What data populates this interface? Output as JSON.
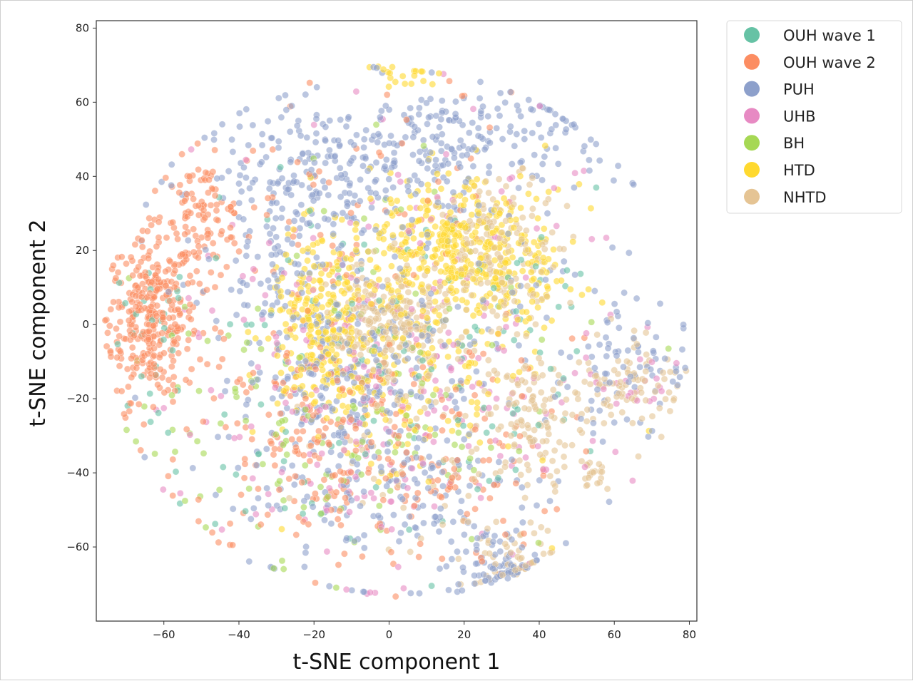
{
  "chart_data": {
    "type": "scatter",
    "title": "",
    "xlabel": "t-SNE component 1",
    "ylabel": "t-SNE component 2",
    "xlim": [
      -78,
      82
    ],
    "ylim": [
      -80,
      82
    ],
    "xticks": [
      -60,
      -40,
      -20,
      0,
      20,
      40,
      60,
      80
    ],
    "yticks": [
      -60,
      -40,
      -20,
      0,
      20,
      40,
      60,
      80
    ],
    "grid": false,
    "legend_position": "outside-top-right",
    "point_alpha": 0.6,
    "series": [
      {
        "name": "OUH wave 1",
        "color": "#66c2a5",
        "clusters": [
          {
            "cx": -62,
            "cy": 0,
            "sx": 5,
            "sy": 10,
            "n": 25
          },
          {
            "cx": -10,
            "cy": -20,
            "sx": 30,
            "sy": 25,
            "n": 90
          },
          {
            "cx": 25,
            "cy": 0,
            "sx": 20,
            "sy": 25,
            "n": 40
          }
        ]
      },
      {
        "name": "OUH wave 2",
        "color": "#fc8d62",
        "clusters": [
          {
            "cx": -63,
            "cy": 2,
            "sx": 6,
            "sy": 11,
            "n": 330
          },
          {
            "cx": -50,
            "cy": 28,
            "sx": 6,
            "sy": 8,
            "n": 110
          },
          {
            "cx": -20,
            "cy": -30,
            "sx": 18,
            "sy": 18,
            "n": 170
          },
          {
            "cx": 10,
            "cy": -40,
            "sx": 18,
            "sy": 15,
            "n": 110
          },
          {
            "cx": -5,
            "cy": 20,
            "sx": 25,
            "sy": 25,
            "n": 90
          }
        ]
      },
      {
        "name": "PUH",
        "color": "#8da0cb",
        "clusters": [
          {
            "cx": -15,
            "cy": 40,
            "sx": 18,
            "sy": 10,
            "n": 200
          },
          {
            "cx": 20,
            "cy": 50,
            "sx": 20,
            "sy": 8,
            "n": 180
          },
          {
            "cx": -30,
            "cy": 20,
            "sx": 8,
            "sy": 12,
            "n": 90
          },
          {
            "cx": -15,
            "cy": -15,
            "sx": 12,
            "sy": 10,
            "n": 150
          },
          {
            "cx": 28,
            "cy": -65,
            "sx": 6,
            "sy": 5,
            "n": 70
          },
          {
            "cx": 0,
            "cy": -45,
            "sx": 20,
            "sy": 12,
            "n": 150
          },
          {
            "cx": 65,
            "cy": -10,
            "sx": 8,
            "sy": 10,
            "n": 60
          },
          {
            "cx": 10,
            "cy": 0,
            "sx": 28,
            "sy": 28,
            "n": 200
          }
        ]
      },
      {
        "name": "UHB",
        "color": "#e78ac3",
        "clusters": [
          {
            "cx": -10,
            "cy": -25,
            "sx": 25,
            "sy": 22,
            "n": 170
          },
          {
            "cx": 10,
            "cy": 10,
            "sx": 28,
            "sy": 25,
            "n": 90
          },
          {
            "cx": 65,
            "cy": -15,
            "sx": 6,
            "sy": 6,
            "n": 20
          }
        ]
      },
      {
        "name": "BH",
        "color": "#a6d854",
        "clusters": [
          {
            "cx": -20,
            "cy": -25,
            "sx": 25,
            "sy": 20,
            "n": 110
          },
          {
            "cx": 10,
            "cy": 0,
            "sx": 25,
            "sy": 25,
            "n": 40
          }
        ]
      },
      {
        "name": "HTD",
        "color": "#ffd92f",
        "clusters": [
          {
            "cx": 15,
            "cy": 20,
            "sx": 10,
            "sy": 10,
            "n": 330
          },
          {
            "cx": -18,
            "cy": 0,
            "sx": 7,
            "sy": 12,
            "n": 250
          },
          {
            "cx": 35,
            "cy": 15,
            "sx": 8,
            "sy": 12,
            "n": 110
          },
          {
            "cx": 5,
            "cy": 67,
            "sx": 5,
            "sy": 3,
            "n": 20
          },
          {
            "cx": 5,
            "cy": -15,
            "sx": 15,
            "sy": 15,
            "n": 140
          }
        ]
      },
      {
        "name": "NHTD",
        "color": "#e5c494",
        "clusters": [
          {
            "cx": 0,
            "cy": 0,
            "sx": 8,
            "sy": 8,
            "n": 230
          },
          {
            "cx": 30,
            "cy": 20,
            "sx": 8,
            "sy": 10,
            "n": 160
          },
          {
            "cx": 40,
            "cy": -25,
            "sx": 6,
            "sy": 8,
            "n": 90
          },
          {
            "cx": 65,
            "cy": -15,
            "sx": 7,
            "sy": 7,
            "n": 80
          },
          {
            "cx": 33,
            "cy": -65,
            "sx": 6,
            "sy": 6,
            "n": 50
          },
          {
            "cx": 55,
            "cy": -40,
            "sx": 2,
            "sy": 2,
            "n": 20
          },
          {
            "cx": 15,
            "cy": -30,
            "sx": 20,
            "sy": 15,
            "n": 100
          }
        ]
      }
    ]
  }
}
